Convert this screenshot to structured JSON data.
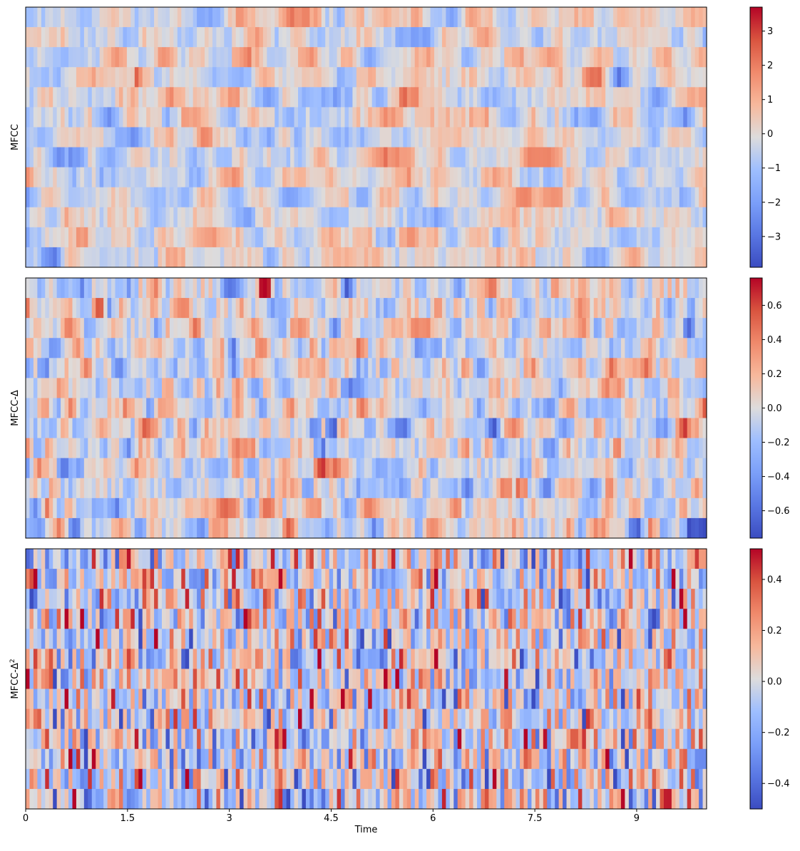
{
  "chart_data": [
    {
      "type": "heatmap",
      "ylabel": "MFCC",
      "xlabel": "",
      "rows": 13,
      "x_range": [
        0,
        10.03
      ],
      "value_range": [
        -3.9,
        3.7
      ],
      "colormap": "coolwarm",
      "colorbar": {
        "ticks": [
          3,
          2,
          1,
          0,
          -1,
          -2,
          -3
        ],
        "tick_labels": [
          "3",
          "2",
          "1",
          "0",
          "−1",
          "−2",
          "−3"
        ]
      },
      "seed": 11,
      "smooth": 3
    },
    {
      "type": "heatmap",
      "ylabel": "MFCC-Δ",
      "xlabel": "",
      "rows": 13,
      "x_range": [
        0,
        10.03
      ],
      "value_range": [
        -0.76,
        0.76
      ],
      "colormap": "coolwarm",
      "colorbar": {
        "ticks": [
          0.6,
          0.4,
          0.2,
          0.0,
          -0.2,
          -0.4,
          -0.6
        ],
        "tick_labels": [
          "0.6",
          "0.4",
          "0.2",
          "0.0",
          "−0.2",
          "−0.4",
          "−0.6"
        ]
      },
      "seed": 23,
      "smooth": 2
    },
    {
      "type": "heatmap",
      "ylabel": "MFCC-Δ",
      "ylabel_sup": "2",
      "xlabel": "Time",
      "rows": 13,
      "x_range": [
        0,
        10.03
      ],
      "value_range": [
        -0.5,
        0.52
      ],
      "colormap": "coolwarm",
      "colorbar": {
        "ticks": [
          0.4,
          0.2,
          0.0,
          -0.2,
          -0.4
        ],
        "tick_labels": [
          "0.4",
          "0.2",
          "0.0",
          "−0.2",
          "−0.4"
        ]
      },
      "xticks": [
        0,
        1.5,
        3,
        4.5,
        6,
        7.5,
        9
      ],
      "xtick_labels": [
        "0",
        "1.5",
        "3",
        "4.5",
        "6",
        "7.5",
        "9"
      ],
      "seed": 37,
      "smooth": 1
    }
  ]
}
